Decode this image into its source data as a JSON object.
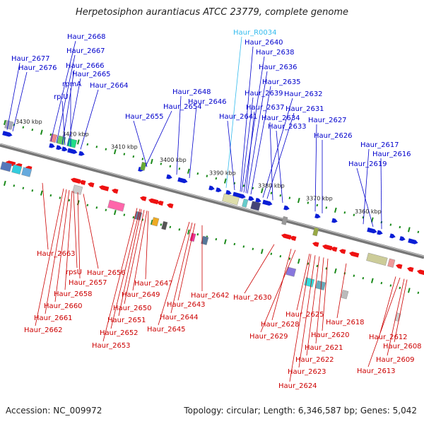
{
  "title": "Herpetosiphon aurantiacus ATCC 23779, complete genome",
  "footer": {
    "accession_label": "Accession: NC_009972",
    "topology_label": "Topology: circular; Length: 6,346,587 bp; Genes: 5,042"
  },
  "colors": {
    "forward_label": "#0000cc",
    "reverse_label": "#cc0000",
    "rna_label": "#33bbee",
    "forward_gene": "#0a1ed6",
    "reverse_gene": "#ee1111",
    "tick": "#1a8a1a",
    "backbone": "#888888"
  },
  "scale_ticks": [
    "3430 kbp",
    "3420 kbp",
    "3410 kbp",
    "3400 kbp",
    "3390 kbp",
    "3380 kbp",
    "3370 kbp",
    "3360 kbp"
  ],
  "top_genes": [
    {
      "name": "Haur_2677",
      "type": "protein"
    },
    {
      "name": "Haur_2676",
      "type": "protein"
    },
    {
      "name": "Haur_2668",
      "type": "protein"
    },
    {
      "name": "Haur_2667",
      "type": "protein"
    },
    {
      "name": "Haur_2666",
      "type": "protein"
    },
    {
      "name": "Haur_2665",
      "type": "protein"
    },
    {
      "name": "rpmA",
      "type": "protein"
    },
    {
      "name": "rplU",
      "type": "protein"
    },
    {
      "name": "Haur_2664",
      "type": "protein"
    },
    {
      "name": "Haur_2654",
      "type": "protein"
    },
    {
      "name": "Haur_2655",
      "type": "protein"
    },
    {
      "name": "Haur_2648",
      "type": "protein"
    },
    {
      "name": "Haur_2646",
      "type": "protein"
    },
    {
      "name": "Haur_R0034",
      "type": "rna"
    },
    {
      "name": "Haur_2640",
      "type": "protein"
    },
    {
      "name": "Haur_2638",
      "type": "protein"
    },
    {
      "name": "Haur_2636",
      "type": "protein"
    },
    {
      "name": "Haur_2635",
      "type": "protein"
    },
    {
      "name": "Haur_2639",
      "type": "protein"
    },
    {
      "name": "Haur_2632",
      "type": "protein"
    },
    {
      "name": "Haur_2637",
      "type": "protein"
    },
    {
      "name": "Haur_2631",
      "type": "protein"
    },
    {
      "name": "Haur_2641",
      "type": "protein"
    },
    {
      "name": "Haur_2634",
      "type": "protein"
    },
    {
      "name": "Haur_2633",
      "type": "protein"
    },
    {
      "name": "Haur_2627",
      "type": "protein"
    },
    {
      "name": "Haur_2626",
      "type": "protein"
    },
    {
      "name": "Haur_2617",
      "type": "protein"
    },
    {
      "name": "Haur_2616",
      "type": "protein"
    },
    {
      "name": "Haur_2619",
      "type": "protein"
    }
  ],
  "bottom_genes": [
    "Haur_2663",
    "rpsU",
    "Haur_2656",
    "Haur_2657",
    "Haur_2658",
    "Haur_2660",
    "Haur_2661",
    "Haur_2662",
    "Haur_2647",
    "Haur_2649",
    "Haur_2650",
    "Haur_2651",
    "Haur_2652",
    "Haur_2653",
    "Haur_2642",
    "Haur_2643",
    "Haur_2644",
    "Haur_2645",
    "Haur_2630",
    "Haur_2628",
    "Haur_2629",
    "Haur_2625",
    "Haur_2618",
    "Haur_2620",
    "Haur_2621",
    "Haur_2622",
    "Haur_2623",
    "Haur_2624",
    "Haur_2612",
    "Haur_2608",
    "Haur_2609",
    "Haur_2613"
  ]
}
